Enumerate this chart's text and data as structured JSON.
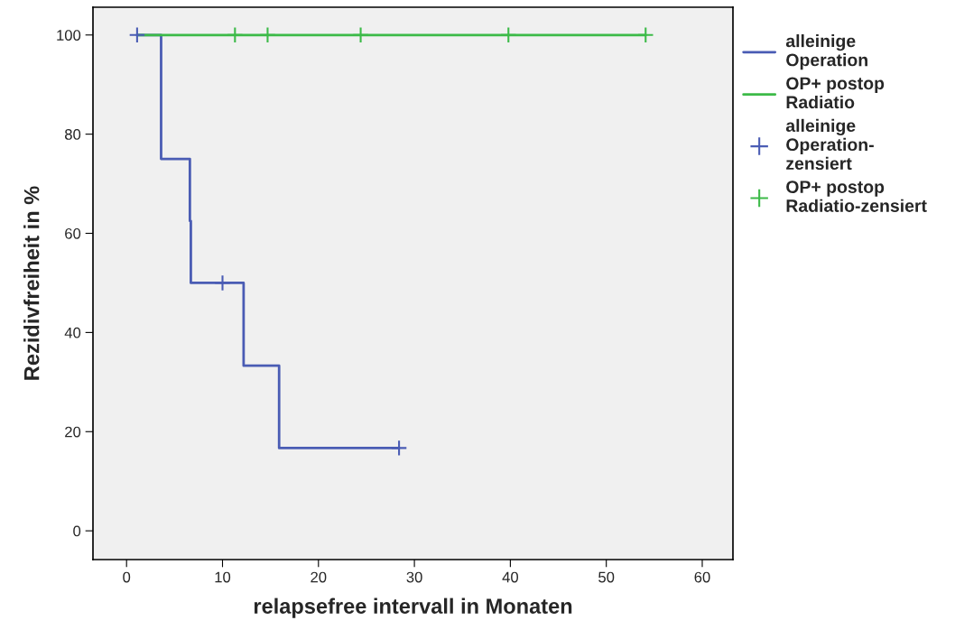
{
  "chart_data": {
    "type": "step",
    "xlabel": "relapsefree intervall in Monaten",
    "ylabel": "Rezidivfreiheit in %",
    "xlim": [
      -3.5,
      63.2
    ],
    "ylim": [
      -5.8,
      105.6
    ],
    "xticks": [
      0,
      10,
      20,
      30,
      40,
      50,
      60
    ],
    "yticks": [
      0,
      20,
      40,
      60,
      80,
      100
    ],
    "grid": false,
    "legend": "right",
    "series": [
      {
        "name": "alleinige\nOperation",
        "color": "#4a5cb4",
        "x": [
          1.1,
          3.6,
          6.6,
          6.7,
          12.2,
          15.9,
          28.4
        ],
        "values": [
          100,
          75,
          62.5,
          50,
          33.3,
          16.7,
          16.7
        ]
      },
      {
        "name": "OP+ postop\nRadiatio",
        "color": "#3cba48",
        "x": [
          1.1,
          54.1
        ],
        "values": [
          100,
          100
        ]
      },
      {
        "name": "alleinige\nOperation-\nzensiert",
        "type": "scatter",
        "marker": "cross",
        "color": "#4a5cb4",
        "x": [
          1.1,
          10.0,
          28.4
        ],
        "values": [
          100,
          50,
          16.7
        ]
      },
      {
        "name": "OP+ postop\nRadiatio-zensiert",
        "type": "scatter",
        "marker": "cross",
        "color": "#3cba48",
        "x": [
          11.3,
          14.7,
          24.4,
          39.8,
          54.1
        ],
        "values": [
          100,
          100,
          100,
          100,
          100
        ]
      }
    ]
  }
}
